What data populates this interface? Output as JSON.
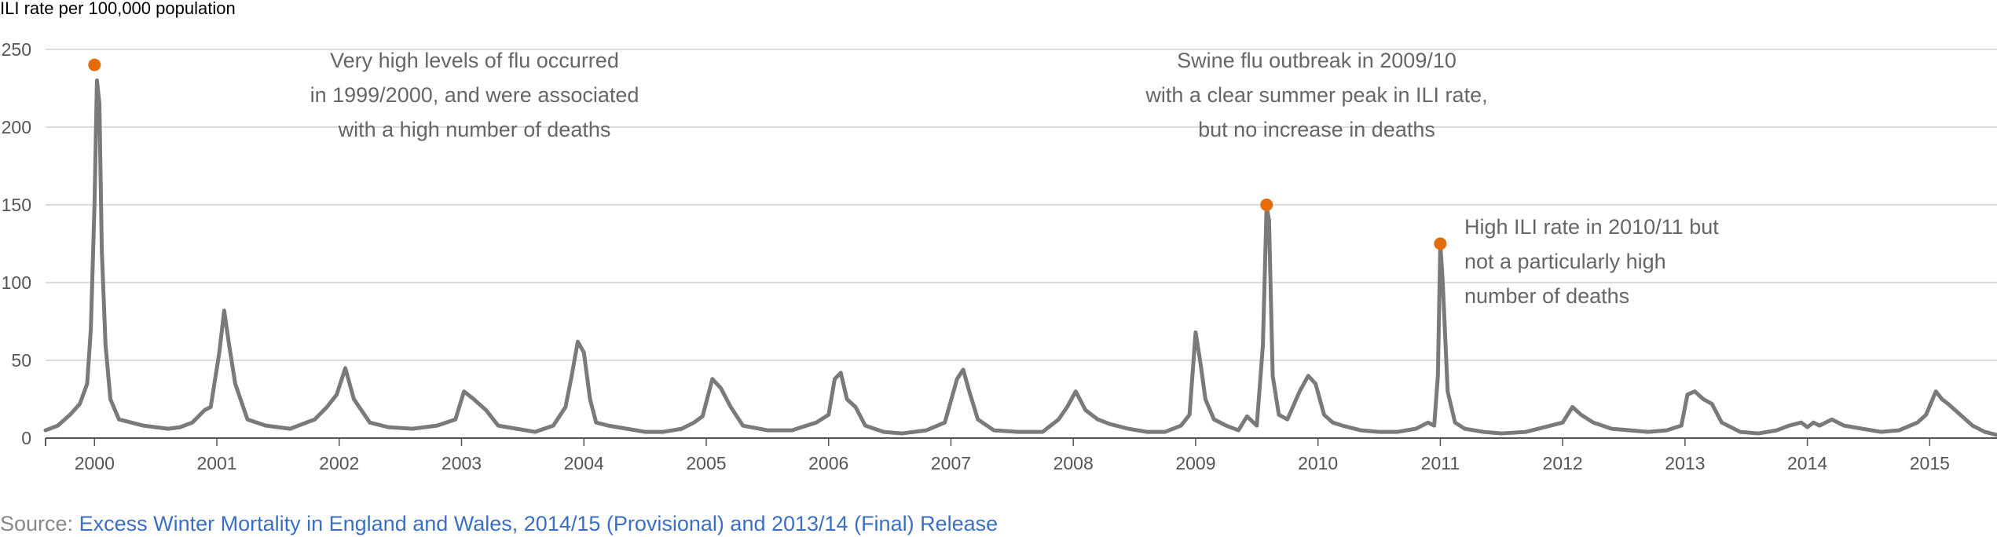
{
  "chart_data": {
    "type": "line",
    "ylabel": "ILI rate per 100,000 population",
    "xlabel": "",
    "ylim": [
      0,
      260
    ],
    "yticks": [
      0,
      50,
      100,
      150,
      200,
      250
    ],
    "x_ticks": [
      "2000",
      "2001",
      "2002",
      "2003",
      "2004",
      "2005",
      "2006",
      "2007",
      "2008",
      "2009",
      "2010",
      "2011",
      "2012",
      "2013",
      "2014",
      "2015"
    ],
    "xlim": [
      1999.6,
      2015.55
    ],
    "grid": "horizontal",
    "series_color": "#7a7a7a",
    "highlight_color": "#e46c0a",
    "series": [
      {
        "x": [
          1999.6,
          1999.7,
          1999.8,
          1999.88,
          1999.94,
          1999.97,
          2000.0,
          2000.02,
          2000.04,
          2000.06,
          2000.09,
          2000.13,
          2000.2,
          2000.3,
          2000.4,
          2000.5,
          2000.6,
          2000.7,
          2000.8,
          2000.9,
          2000.95,
          2000.98,
          2001.02,
          2001.06,
          2001.1,
          2001.15,
          2001.25,
          2001.4,
          2001.6,
          2001.8,
          2001.9,
          2001.98,
          2002.05,
          2002.12,
          2002.25,
          2002.4,
          2002.6,
          2002.8,
          2002.95,
          2003.02,
          2003.1,
          2003.2,
          2003.3,
          2003.45,
          2003.6,
          2003.75,
          2003.85,
          2003.9,
          2003.95,
          2004.0,
          2004.05,
          2004.1,
          2004.2,
          2004.35,
          2004.5,
          2004.65,
          2004.8,
          2004.9,
          2004.97,
          2005.05,
          2005.12,
          2005.2,
          2005.3,
          2005.5,
          2005.7,
          2005.9,
          2006.0,
          2006.05,
          2006.1,
          2006.15,
          2006.22,
          2006.3,
          2006.45,
          2006.6,
          2006.8,
          2006.95,
          2007.05,
          2007.1,
          2007.15,
          2007.22,
          2007.35,
          2007.55,
          2007.75,
          2007.88,
          2007.95,
          2008.02,
          2008.1,
          2008.2,
          2008.3,
          2008.45,
          2008.6,
          2008.75,
          2008.88,
          2008.95,
          2009.0,
          2009.04,
          2009.08,
          2009.15,
          2009.25,
          2009.35,
          2009.42,
          2009.5,
          2009.55,
          2009.58,
          2009.6,
          2009.63,
          2009.68,
          2009.75,
          2009.85,
          2009.92,
          2009.98,
          2010.05,
          2010.12,
          2010.2,
          2010.35,
          2010.5,
          2010.65,
          2010.8,
          2010.9,
          2010.95,
          2010.98,
          2011.0,
          2011.02,
          2011.06,
          2011.12,
          2011.2,
          2011.35,
          2011.5,
          2011.7,
          2011.9,
          2012.0,
          2012.08,
          2012.15,
          2012.25,
          2012.4,
          2012.55,
          2012.7,
          2012.85,
          2012.97,
          2013.02,
          2013.08,
          2013.15,
          2013.22,
          2013.3,
          2013.45,
          2013.6,
          2013.75,
          2013.85,
          2013.95,
          2014.0,
          2014.05,
          2014.1,
          2014.2,
          2014.3,
          2014.45,
          2014.6,
          2014.75,
          2014.9,
          2014.97,
          2015.05,
          2015.1,
          2015.15,
          2015.25,
          2015.35,
          2015.45,
          2015.55
        ],
        "values": [
          5,
          8,
          15,
          22,
          35,
          70,
          150,
          230,
          215,
          120,
          60,
          25,
          12,
          10,
          8,
          7,
          6,
          7,
          10,
          18,
          20,
          35,
          55,
          82,
          60,
          35,
          12,
          8,
          6,
          12,
          20,
          28,
          45,
          25,
          10,
          7,
          6,
          8,
          12,
          30,
          25,
          18,
          8,
          6,
          4,
          8,
          20,
          40,
          62,
          55,
          25,
          10,
          8,
          6,
          4,
          4,
          6,
          10,
          14,
          38,
          32,
          20,
          8,
          5,
          5,
          10,
          15,
          38,
          42,
          25,
          20,
          8,
          4,
          3,
          5,
          10,
          38,
          44,
          30,
          12,
          5,
          4,
          4,
          12,
          20,
          30,
          18,
          12,
          9,
          6,
          4,
          4,
          8,
          15,
          68,
          48,
          25,
          12,
          8,
          5,
          14,
          8,
          60,
          149,
          140,
          40,
          15,
          12,
          30,
          40,
          35,
          15,
          10,
          8,
          5,
          4,
          4,
          6,
          10,
          8,
          40,
          125,
          100,
          30,
          10,
          6,
          4,
          3,
          4,
          8,
          10,
          20,
          15,
          10,
          6,
          5,
          4,
          5,
          8,
          28,
          30,
          25,
          22,
          10,
          4,
          3,
          5,
          8,
          10,
          7,
          10,
          8,
          12,
          8,
          6,
          4,
          5,
          10,
          15,
          30,
          25,
          22,
          15,
          8,
          4,
          2
        ]
      }
    ],
    "highlights": [
      {
        "x": 2000.0,
        "y": 240
      },
      {
        "x": 2009.58,
        "y": 150
      },
      {
        "x": 2011.0,
        "y": 125
      }
    ],
    "annotations": [
      {
        "lines": [
          "Very high levels of flu occurred",
          "in 1999/2000, and were associated",
          "with a high number of deaths"
        ],
        "align": "middle"
      },
      {
        "lines": [
          "Swine flu outbreak in 2009/10",
          "with a clear summer peak in ILI rate,",
          "but no increase in deaths"
        ],
        "align": "middle"
      },
      {
        "lines": [
          "High ILI rate in 2010/11 but",
          "not a particularly high",
          "number of deaths"
        ],
        "align": "start"
      }
    ]
  },
  "source": {
    "label": "Source: ",
    "link_text": "Excess Winter Mortality in England and Wales, 2014/15 (Provisional) and 2013/14 (Final) Release"
  }
}
